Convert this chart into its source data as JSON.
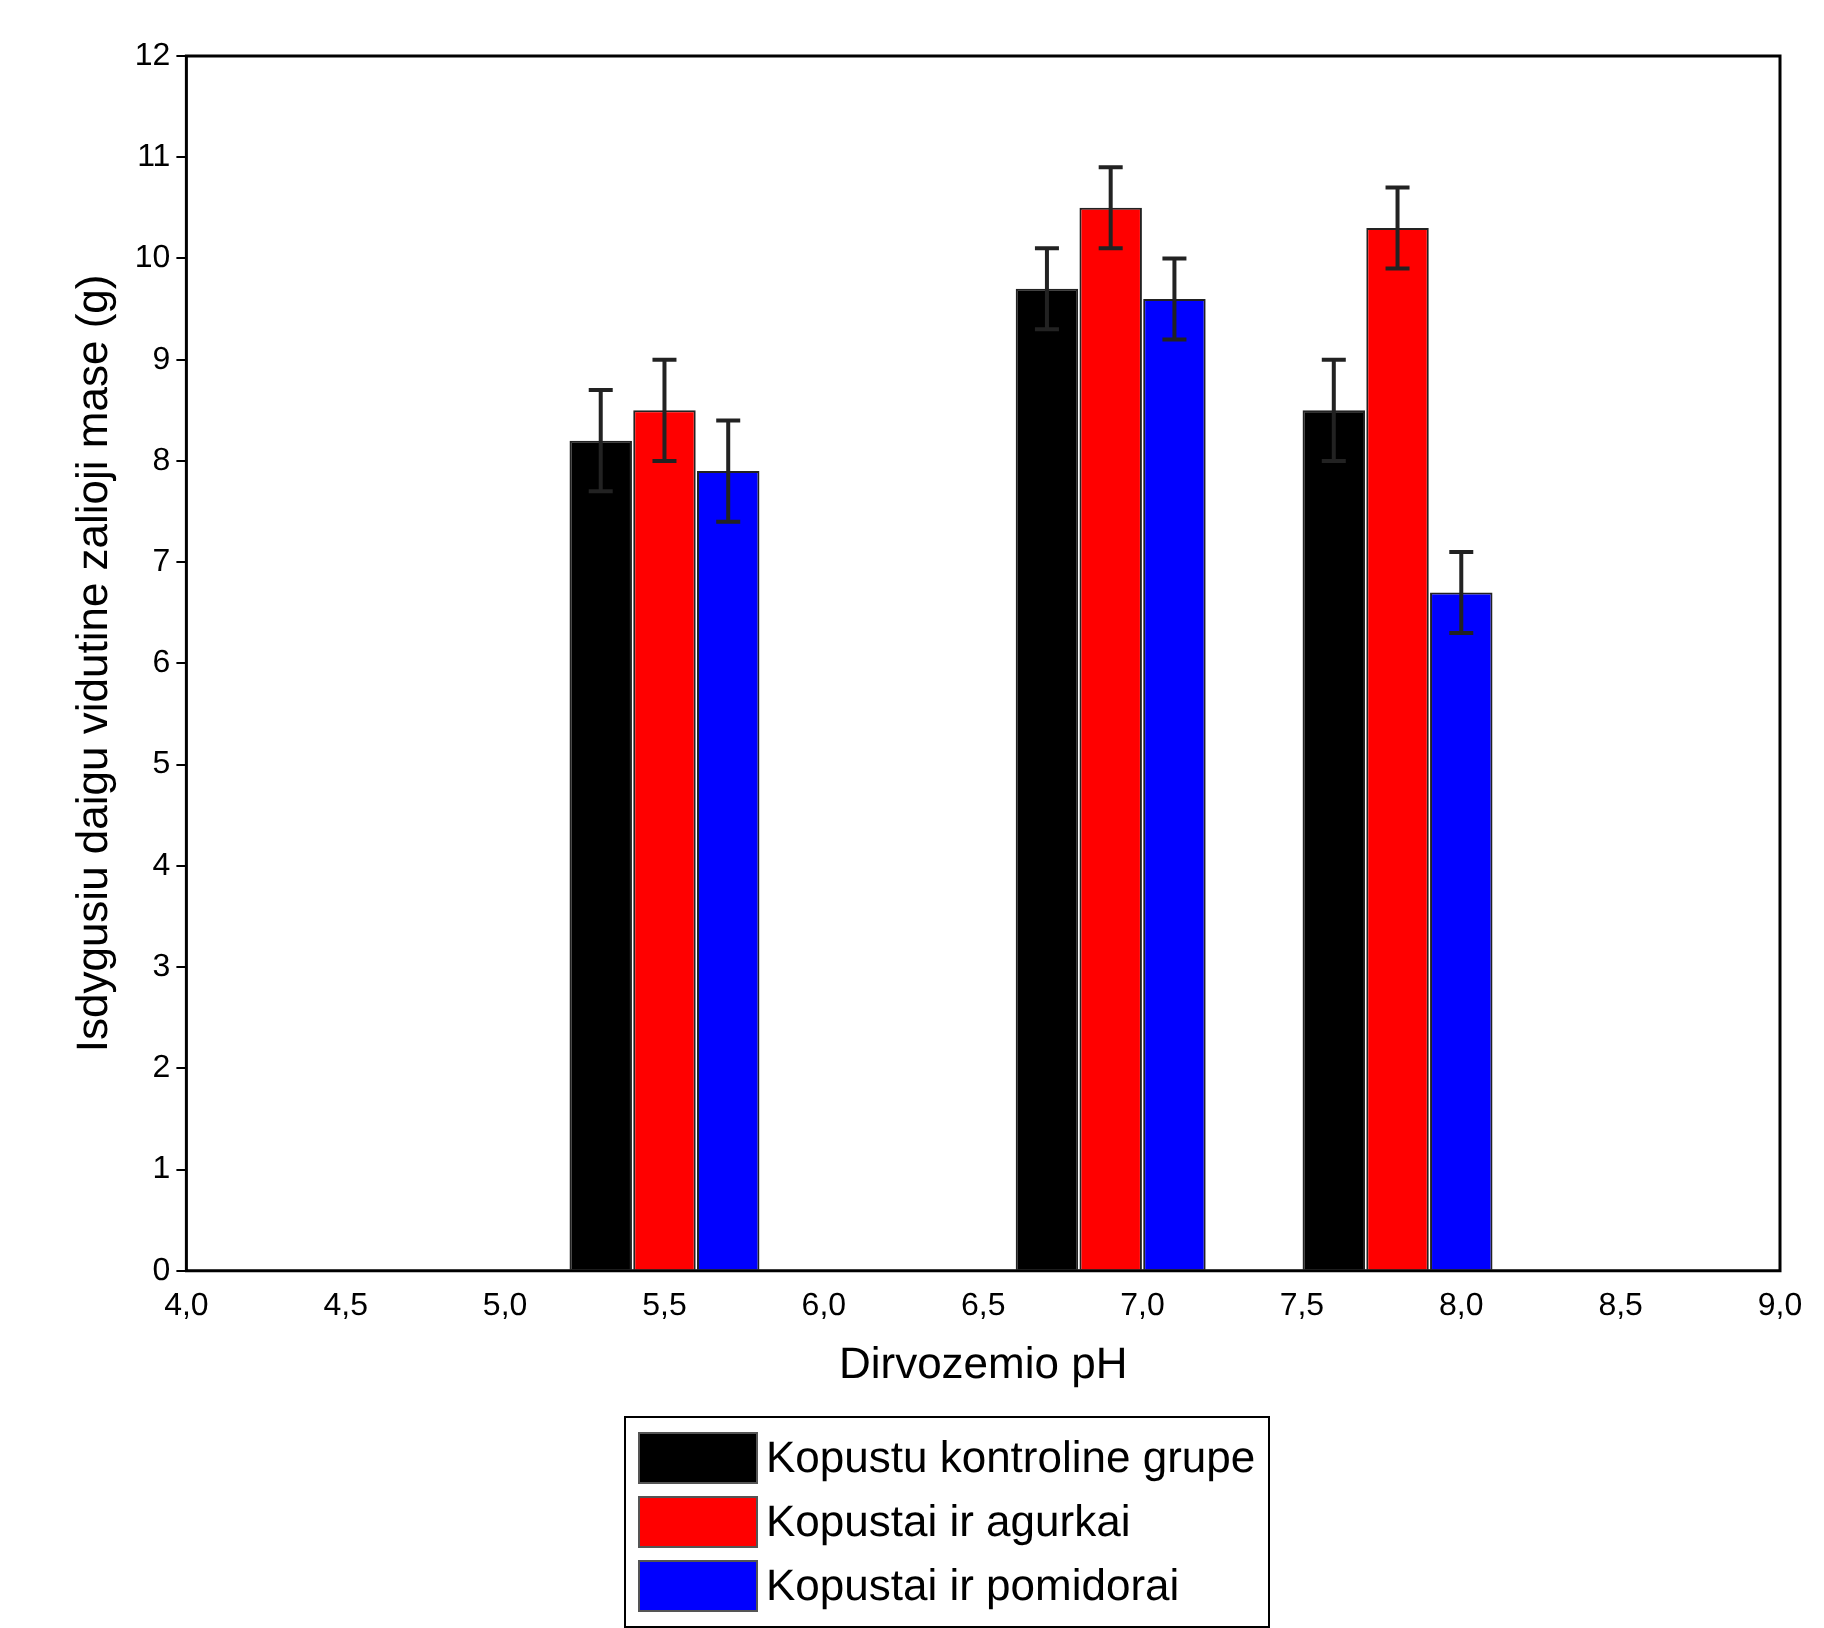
{
  "chart_data": {
    "type": "bar",
    "xlabel": "Dirvozemio pH",
    "ylabel": "Isdygusiu daigu vidutine zalioji mase (g)",
    "xlim": [
      4,
      9
    ],
    "xticks": [
      {
        "value": 4,
        "label": "4,0"
      },
      {
        "value": 4.5,
        "label": "4,5"
      },
      {
        "value": 5,
        "label": "5,0"
      },
      {
        "value": 5.5,
        "label": "5,5"
      },
      {
        "value": 6,
        "label": "6,0"
      },
      {
        "value": 6.5,
        "label": "6,5"
      },
      {
        "value": 7,
        "label": "7,0"
      },
      {
        "value": 7.5,
        "label": "7,5"
      },
      {
        "value": 8,
        "label": "8,0"
      },
      {
        "value": 8.5,
        "label": "8,5"
      },
      {
        "value": 9,
        "label": "9,0"
      }
    ],
    "ylim": [
      0,
      12
    ],
    "yticks": [
      0,
      1,
      2,
      3,
      4,
      5,
      6,
      7,
      8,
      9,
      10,
      11,
      12
    ],
    "grid": false,
    "legend": "bottom",
    "series": [
      {
        "name": "Kopustu kontroline grupe",
        "color": "#000000",
        "x": [
          5.3,
          6.7,
          7.6
        ],
        "values": [
          8.2,
          9.7,
          8.5
        ],
        "errors": [
          0.5,
          0.4,
          0.5
        ]
      },
      {
        "name": "Kopustai ir agurkai",
        "color": "#ff0000",
        "x": [
          5.5,
          6.9,
          7.8
        ],
        "values": [
          8.5,
          10.5,
          10.3
        ],
        "errors": [
          0.5,
          0.4,
          0.4
        ]
      },
      {
        "name": "Kopustai ir pomidorai",
        "color": "#0000ff",
        "x": [
          5.7,
          7.1,
          8.0
        ],
        "values": [
          7.9,
          9.6,
          6.7
        ],
        "errors": [
          0.5,
          0.4,
          0.4
        ]
      }
    ]
  }
}
